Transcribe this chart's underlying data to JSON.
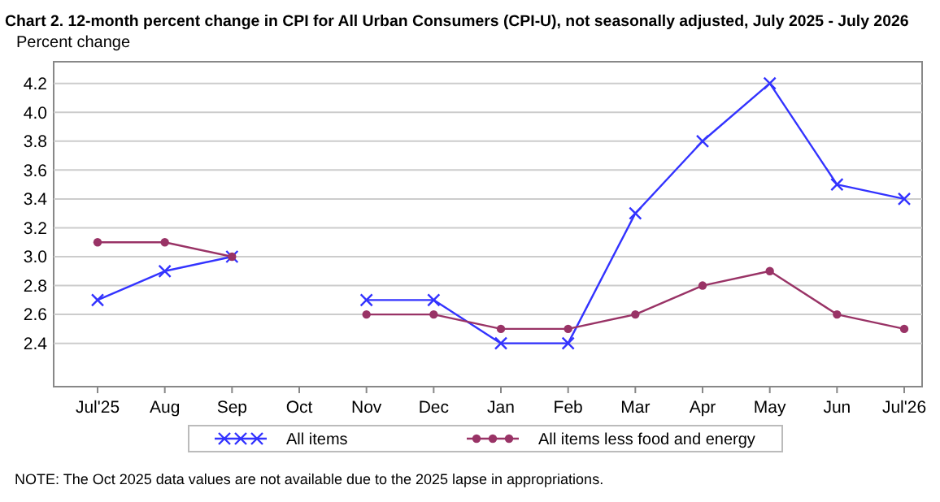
{
  "chart_data": {
    "type": "line",
    "title": "Chart 2. 12-month percent change in CPI for All Urban Consumers (CPI-U), not seasonally adjusted, July 2025 - July 2026",
    "subtitle": "Percent change",
    "categories": [
      "Jul'25",
      "Aug",
      "Sep",
      "Oct",
      "Nov",
      "Dec",
      "Jan",
      "Feb",
      "Mar",
      "Apr",
      "May",
      "Jun",
      "Jul'26"
    ],
    "series": [
      {
        "name": "All items",
        "color": "#3333ff",
        "marker": "cross",
        "values": [
          2.7,
          2.9,
          3.0,
          null,
          2.7,
          2.7,
          2.4,
          2.4,
          3.3,
          3.8,
          4.2,
          3.5,
          3.4
        ]
      },
      {
        "name": "All items less food and energy",
        "color": "#993366",
        "marker": "circle",
        "values": [
          3.1,
          3.1,
          3.0,
          null,
          2.6,
          2.6,
          2.5,
          2.5,
          2.6,
          2.8,
          2.9,
          2.6,
          2.5
        ]
      }
    ],
    "ylim": [
      2.1,
      4.35
    ],
    "yticks": [
      2.4,
      2.6,
      2.8,
      {
        "value": 3,
        "label": "3.0"
      },
      3.2,
      3.4,
      3.6,
      3.8,
      {
        "value": 4,
        "label": "4.0"
      },
      4.2
    ],
    "grid": "y",
    "legend": "bottom",
    "annotations": [
      "NOTE: The Oct 2025 data values are not available due to the 2025 lapse in appropriations."
    ]
  }
}
